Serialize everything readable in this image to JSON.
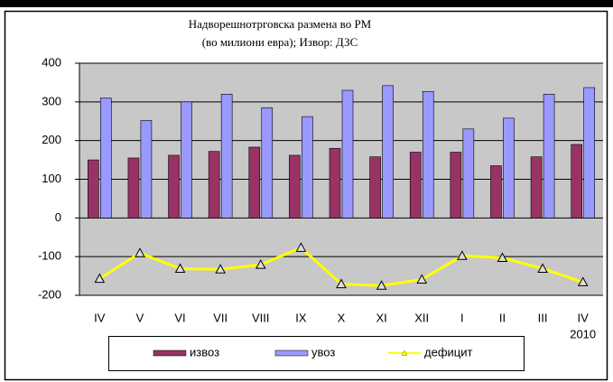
{
  "chart_data": {
    "type": "bar_line",
    "title": "Надворешнотрговска размена во РМ",
    "subtitle": "(во милиони евра); Извор: ДЗС",
    "categories": [
      "IV",
      "V",
      "VI",
      "VII",
      "VIII",
      "IX",
      "X",
      "XI",
      "XII",
      "I",
      "II",
      "III",
      "IV"
    ],
    "annotation": "2010",
    "series": [
      {
        "name": "извоз",
        "color": "#993366",
        "kind": "bar",
        "values": [
          150,
          155,
          162,
          172,
          183,
          162,
          180,
          158,
          170,
          170,
          135,
          158,
          190
        ]
      },
      {
        "name": "увоз",
        "color": "#9999ff",
        "kind": "bar",
        "values": [
          310,
          252,
          300,
          320,
          285,
          262,
          330,
          342,
          327,
          230,
          258,
          320,
          337
        ]
      },
      {
        "name": "дефицит",
        "color": "#ffff00",
        "kind": "line",
        "values": [
          -157,
          -91,
          -131,
          -133,
          -121,
          -77,
          -171,
          -175,
          -159,
          -98,
          -103,
          -131,
          -166
        ]
      }
    ],
    "ylim": [
      -200,
      400
    ],
    "yticks": [
      -200,
      -100,
      0,
      100,
      200,
      300,
      400
    ],
    "grid": true,
    "legend": "bottom"
  }
}
